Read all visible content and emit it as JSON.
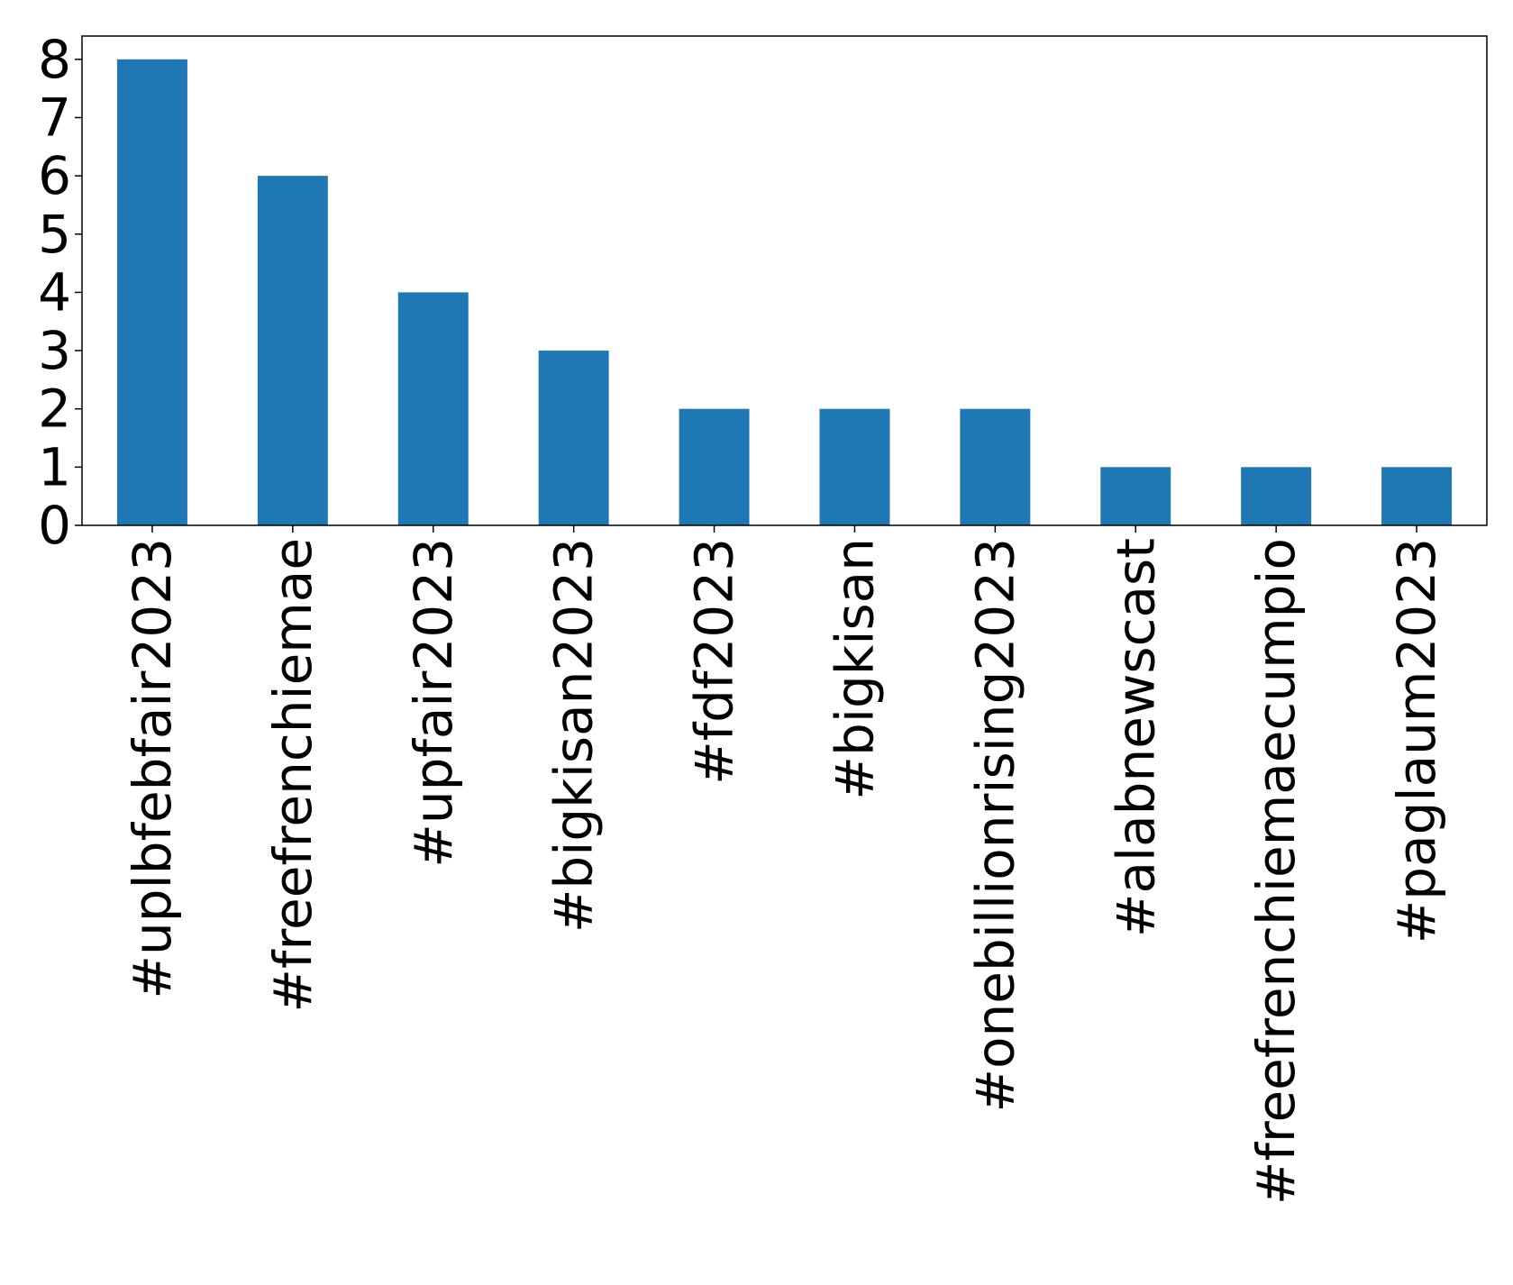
{
  "chart_data": {
    "type": "bar",
    "categories": [
      "#uplbfebfair2023",
      "#freefrenchiemae",
      "#upfair2023",
      "#bigkisan2023",
      "#fdf2023",
      "#bigkisan",
      "#onebillionrising2023",
      "#alabnewscast",
      "#freefrenchiemaecumpio",
      "#paglaum2023"
    ],
    "values": [
      8,
      6,
      4,
      3,
      2,
      2,
      2,
      1,
      1,
      1
    ],
    "title": "",
    "xlabel": "",
    "ylabel": "",
    "ylim": [
      0,
      8.4
    ],
    "yticks": [
      0,
      1,
      2,
      3,
      4,
      5,
      6,
      7,
      8
    ],
    "grid": false,
    "legend": "none",
    "bar_color": "#1f77b4"
  }
}
